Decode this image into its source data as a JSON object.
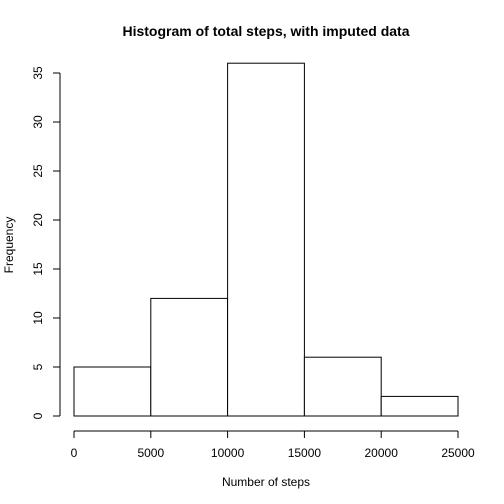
{
  "chart_data": {
    "type": "histogram",
    "title": "Histogram of total steps, with imputed data",
    "xlabel": "Number of steps",
    "ylabel": "Frequency",
    "bins": [
      {
        "from": 0,
        "to": 5000,
        "count": 5
      },
      {
        "from": 5000,
        "to": 10000,
        "count": 12
      },
      {
        "from": 10000,
        "to": 15000,
        "count": 36
      },
      {
        "from": 15000,
        "to": 20000,
        "count": 6
      },
      {
        "from": 20000,
        "to": 25000,
        "count": 2
      }
    ],
    "xlim": [
      0,
      25000
    ],
    "ylim": [
      0,
      35
    ],
    "x_ticks": [
      0,
      5000,
      10000,
      15000,
      20000,
      25000
    ],
    "y_ticks": [
      0,
      5,
      10,
      15,
      20,
      25,
      30,
      35
    ],
    "bar_color": "#ffffff",
    "border_color": "#000000",
    "grid": false
  }
}
